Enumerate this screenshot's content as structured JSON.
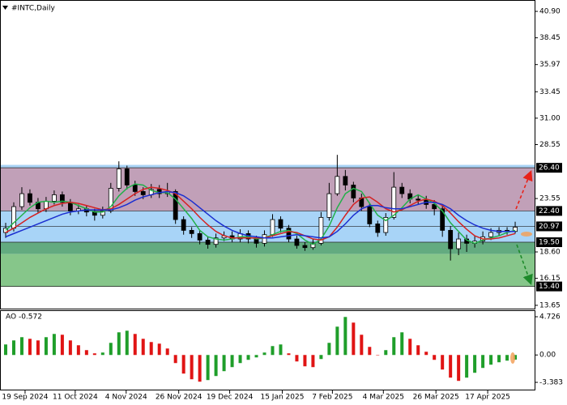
{
  "chart_data": {
    "type": "candlestick",
    "title": "#INTC,Daily",
    "xlim": [
      -0.6,
      65.4
    ],
    "ylim": [
      13.27,
      41.88
    ],
    "yticks": [
      {
        "value": 40.9,
        "label": "40.90"
      },
      {
        "value": 38.45,
        "label": "38.45"
      },
      {
        "value": 35.97,
        "label": "35.97"
      },
      {
        "value": 33.45,
        "label": "33.45"
      },
      {
        "value": 31.0,
        "label": "31.00"
      },
      {
        "value": 28.55,
        "label": "28.55"
      },
      {
        "value": 23.55,
        "label": "23.55"
      },
      {
        "value": 18.6,
        "label": "18.60"
      },
      {
        "value": 16.15,
        "label": "16.15"
      },
      {
        "value": 13.65,
        "label": "13.65"
      }
    ],
    "levels": [
      {
        "value": 26.4,
        "label": "26.40"
      },
      {
        "value": 22.4,
        "label": "22.40"
      },
      {
        "value": 20.97,
        "label": "20.97"
      },
      {
        "value": 19.5,
        "label": "19.50"
      },
      {
        "value": 15.4,
        "label": "15.40"
      }
    ],
    "zones": [
      {
        "from": 26.4,
        "to": 26.67,
        "color": "#a9d3f5"
      },
      {
        "from": 22.4,
        "to": 26.4,
        "color": "#c1a0b8"
      },
      {
        "from": 19.5,
        "to": 22.4,
        "color": "#a8d4f7"
      },
      {
        "from": 18.4,
        "to": 19.5,
        "color": "#63ab80"
      },
      {
        "from": 15.4,
        "to": 18.4,
        "color": "#86c68a"
      }
    ],
    "xticks": [
      {
        "value": 2.4,
        "label": "19 Sep 2024"
      },
      {
        "value": 8.6,
        "label": "11 Oct 2024"
      },
      {
        "value": 14.9,
        "label": "4 Nov 2024"
      },
      {
        "value": 21.4,
        "label": "26 Nov 2024"
      },
      {
        "value": 27.7,
        "label": "19 Dec 2024"
      },
      {
        "value": 34.2,
        "label": "15 Jan 2025"
      },
      {
        "value": 40.4,
        "label": "7 Feb 2025"
      },
      {
        "value": 46.7,
        "label": "4 Mar 2025"
      },
      {
        "value": 53.2,
        "label": "26 Mar 2025"
      },
      {
        "value": 59.6,
        "label": "17 Apr 2025"
      }
    ],
    "up_color": "#ffffff",
    "down_color": "#000000",
    "ohlc": [
      [
        20.4,
        21.3,
        19.9,
        20.8
      ],
      [
        20.8,
        23.2,
        20.5,
        22.8
      ],
      [
        22.8,
        24.6,
        22.5,
        24.0
      ],
      [
        24.0,
        24.4,
        22.9,
        23.2
      ],
      [
        23.2,
        23.6,
        22.2,
        22.6
      ],
      [
        22.6,
        23.7,
        22.3,
        23.3
      ],
      [
        23.3,
        24.3,
        23.0,
        23.9
      ],
      [
        23.9,
        24.2,
        22.8,
        23.2
      ],
      [
        23.2,
        23.5,
        22.0,
        22.4
      ],
      [
        22.4,
        23.0,
        22.1,
        22.6
      ],
      [
        22.6,
        22.9,
        21.9,
        22.3
      ],
      [
        22.3,
        22.6,
        21.5,
        22.0
      ],
      [
        22.0,
        22.8,
        21.7,
        22.4
      ],
      [
        22.4,
        25.0,
        22.2,
        24.5
      ],
      [
        24.5,
        27.0,
        24.2,
        26.3
      ],
      [
        26.3,
        26.6,
        24.4,
        24.8
      ],
      [
        24.8,
        25.2,
        23.8,
        24.2
      ],
      [
        24.2,
        24.6,
        23.5,
        23.9
      ],
      [
        23.9,
        24.9,
        23.6,
        24.4
      ],
      [
        24.4,
        24.8,
        23.6,
        24.0
      ],
      [
        24.0,
        25.0,
        23.7,
        24.2
      ],
      [
        24.2,
        24.4,
        21.2,
        21.6
      ],
      [
        21.6,
        21.9,
        20.2,
        20.6
      ],
      [
        20.6,
        20.9,
        19.9,
        20.3
      ],
      [
        20.3,
        20.6,
        19.3,
        19.7
      ],
      [
        19.7,
        20.0,
        18.9,
        19.3
      ],
      [
        19.3,
        20.3,
        19.0,
        19.9
      ],
      [
        19.9,
        20.5,
        19.6,
        20.1
      ],
      [
        20.1,
        20.5,
        19.5,
        19.8
      ],
      [
        19.8,
        20.7,
        19.5,
        20.3
      ],
      [
        20.3,
        20.6,
        19.4,
        19.8
      ],
      [
        19.8,
        20.1,
        19.0,
        19.4
      ],
      [
        19.4,
        20.6,
        19.1,
        20.2
      ],
      [
        20.2,
        22.1,
        20.0,
        21.6
      ],
      [
        21.6,
        21.9,
        20.4,
        20.8
      ],
      [
        20.8,
        21.1,
        19.5,
        19.8
      ],
      [
        19.8,
        20.1,
        18.9,
        19.2
      ],
      [
        19.2,
        19.5,
        18.7,
        19.0
      ],
      [
        19.0,
        19.8,
        18.8,
        19.4
      ],
      [
        19.4,
        22.3,
        19.2,
        21.8
      ],
      [
        21.8,
        25.0,
        21.5,
        24.0
      ],
      [
        24.0,
        27.6,
        23.8,
        25.6
      ],
      [
        25.6,
        26.2,
        24.3,
        24.8
      ],
      [
        24.8,
        25.1,
        23.2,
        23.6
      ],
      [
        23.6,
        24.0,
        22.4,
        22.8
      ],
      [
        22.8,
        23.1,
        20.9,
        21.2
      ],
      [
        21.2,
        21.5,
        20.0,
        20.4
      ],
      [
        20.4,
        22.2,
        20.1,
        21.8
      ],
      [
        21.8,
        26.0,
        21.6,
        24.6
      ],
      [
        24.6,
        25.0,
        23.6,
        24.0
      ],
      [
        24.0,
        24.4,
        23.1,
        23.5
      ],
      [
        23.5,
        23.9,
        23.0,
        23.4
      ],
      [
        23.4,
        23.8,
        22.6,
        23.0
      ],
      [
        23.0,
        23.4,
        22.0,
        22.6
      ],
      [
        22.6,
        22.9,
        20.0,
        20.6
      ],
      [
        20.6,
        21.0,
        17.8,
        18.9
      ],
      [
        18.9,
        20.4,
        18.3,
        19.8
      ],
      [
        19.8,
        20.2,
        18.6,
        19.4
      ],
      [
        19.4,
        20.1,
        19.0,
        19.6
      ],
      [
        19.6,
        20.5,
        19.3,
        20.0
      ],
      [
        20.0,
        20.8,
        19.7,
        20.4
      ],
      [
        20.4,
        20.9,
        20.1,
        20.6
      ],
      [
        20.6,
        20.9,
        20.2,
        20.5
      ],
      [
        20.5,
        21.4,
        20.3,
        20.9
      ]
    ],
    "series": [
      {
        "color": "#22b04a",
        "values": [
          20.6,
          21.3,
          22.0,
          22.7,
          23.2,
          23.3,
          23.2,
          23.3,
          23.2,
          22.9,
          22.6,
          22.3,
          22.3,
          22.8,
          23.8,
          24.5,
          24.9,
          24.8,
          24.3,
          24.1,
          24.1,
          23.5,
          22.6,
          21.7,
          20.6,
          20.0,
          19.8,
          19.7,
          19.8,
          20.0,
          20.0,
          19.8,
          19.9,
          20.2,
          20.5,
          20.6,
          20.3,
          19.7,
          19.3,
          19.8,
          21.0,
          22.7,
          24.0,
          24.5,
          24.2,
          23.1,
          22.0,
          21.5,
          22.0,
          22.7,
          23.5,
          23.9,
          23.5,
          23.1,
          22.4,
          21.3,
          20.5,
          19.7,
          19.4,
          19.7,
          19.9,
          20.1,
          20.4,
          20.6
        ]
      },
      {
        "color": "#d42222",
        "values": [
          20.4,
          20.8,
          21.3,
          21.8,
          22.2,
          22.6,
          22.9,
          23.1,
          23.2,
          23.1,
          22.9,
          22.7,
          22.5,
          22.6,
          23.0,
          23.5,
          24.0,
          24.4,
          24.6,
          24.5,
          24.3,
          24.0,
          23.3,
          22.6,
          21.8,
          21.1,
          20.5,
          20.1,
          19.9,
          19.9,
          19.9,
          19.9,
          19.9,
          20.1,
          20.3,
          20.5,
          20.4,
          20.1,
          19.8,
          19.7,
          20.0,
          20.9,
          22.0,
          23.0,
          23.6,
          23.7,
          23.2,
          22.6,
          22.3,
          22.5,
          22.9,
          23.3,
          23.5,
          23.3,
          22.9,
          22.2,
          21.4,
          20.7,
          20.1,
          19.8,
          19.8,
          19.9,
          20.1,
          20.3
        ]
      },
      {
        "color": "#1c2fd0",
        "values": [
          20.0,
          20.3,
          20.6,
          20.9,
          21.2,
          21.5,
          21.8,
          22.1,
          22.3,
          22.4,
          22.5,
          22.5,
          22.5,
          22.5,
          22.7,
          23.0,
          23.4,
          23.7,
          23.9,
          24.1,
          24.2,
          24.1,
          23.8,
          23.3,
          22.7,
          22.1,
          21.5,
          21.0,
          20.6,
          20.3,
          20.1,
          20.0,
          19.9,
          19.9,
          20.0,
          20.1,
          20.2,
          20.1,
          20.0,
          19.9,
          20.0,
          20.5,
          21.2,
          22.0,
          22.6,
          22.9,
          22.9,
          22.7,
          22.6,
          22.6,
          22.8,
          23.0,
          23.2,
          23.2,
          23.0,
          22.6,
          22.0,
          21.5,
          21.1,
          20.8,
          20.6,
          20.5,
          20.5,
          20.5
        ]
      }
    ],
    "ao": {
      "label": "AO -0.572",
      "ylim": [
        -4.38,
        5.43
      ],
      "yticks": [
        {
          "value": 4.726,
          "label": "4.726"
        },
        {
          "value": 0,
          "label": "0.00"
        },
        {
          "value": -3.383,
          "label": "-3.383"
        }
      ],
      "up_color": "#1f9e2a",
      "down_color": "#e01414",
      "values": [
        1.3,
        1.8,
        2.2,
        2.0,
        1.8,
        2.2,
        2.6,
        2.5,
        1.8,
        1.2,
        0.6,
        0.2,
        0.3,
        1.5,
        2.8,
        3.0,
        2.6,
        2.0,
        1.6,
        1.4,
        0.8,
        -1.0,
        -2.3,
        -3.0,
        -3.3,
        -3.1,
        -2.6,
        -2.0,
        -1.5,
        -1.0,
        -0.6,
        -0.3,
        0.3,
        1.1,
        1.3,
        0.2,
        -0.8,
        -1.4,
        -1.5,
        -0.5,
        1.5,
        3.5,
        4.7,
        4.0,
        2.5,
        1.0,
        0.0,
        0.6,
        2.2,
        2.8,
        2.0,
        1.2,
        0.4,
        -0.6,
        -1.8,
        -2.8,
        -3.2,
        -2.8,
        -2.2,
        -1.6,
        -1.2,
        -0.9,
        -0.7,
        -0.572
      ]
    }
  }
}
